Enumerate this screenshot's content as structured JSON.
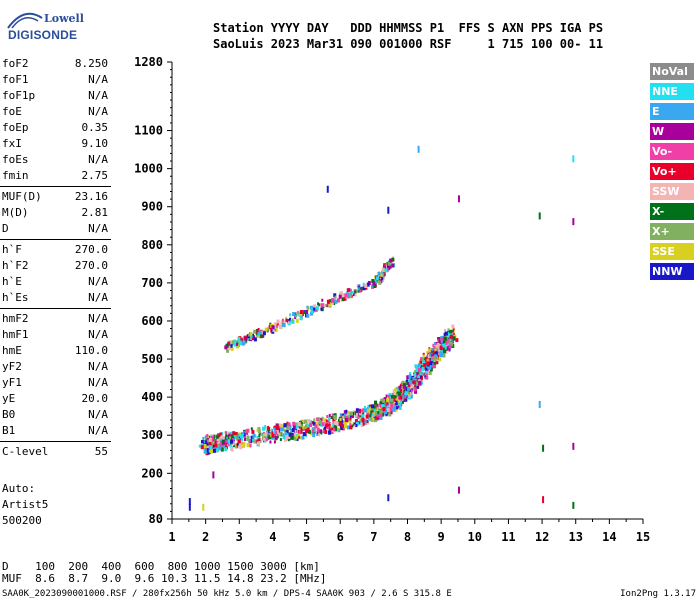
{
  "logo": {
    "line1": "Lowell",
    "line2": "DIGISONDE"
  },
  "header": {
    "line1": "Station YYYY DAY   DDD HHMMSS P1  FFS S AXN PPS IGA PS",
    "line2": "SaoLuis 2023 Mar31 090 001000 RSF     1 715 100 00- 11"
  },
  "params": [
    {
      "label": "foF2",
      "value": "8.250"
    },
    {
      "label": "foF1",
      "value": "N/A"
    },
    {
      "label": "foF1p",
      "value": "N/A"
    },
    {
      "label": "foE",
      "value": "N/A"
    },
    {
      "label": "foEp",
      "value": "0.35"
    },
    {
      "label": "fxI",
      "value": "9.10"
    },
    {
      "label": "foEs",
      "value": "N/A"
    },
    {
      "label": "fmin",
      "value": "2.75"
    },
    {
      "label": "MUF(D)",
      "value": "23.16"
    },
    {
      "label": "M(D)",
      "value": "2.81"
    },
    {
      "label": "D",
      "value": "N/A"
    },
    {
      "label": "h`F",
      "value": "270.0"
    },
    {
      "label": "h`F2",
      "value": "270.0"
    },
    {
      "label": "h`E",
      "value": "N/A"
    },
    {
      "label": "h`Es",
      "value": "N/A"
    },
    {
      "label": "hmF2",
      "value": "N/A"
    },
    {
      "label": "hmF1",
      "value": "N/A"
    },
    {
      "label": "hmE",
      "value": "110.0"
    },
    {
      "label": "yF2",
      "value": "N/A"
    },
    {
      "label": "yF1",
      "value": "N/A"
    },
    {
      "label": "yE",
      "value": "20.0"
    },
    {
      "label": "B0",
      "value": "N/A"
    },
    {
      "label": "B1",
      "value": "N/A"
    },
    {
      "label": "C-level",
      "value": "55"
    }
  ],
  "auto": {
    "line1": "Auto:",
    "line2": "Artist5",
    "line3": "500200"
  },
  "legend": [
    {
      "label": "NoVal",
      "color": "#8c8c8c"
    },
    {
      "label": "NNE",
      "color": "#22e0f0"
    },
    {
      "label": "E",
      "color": "#3aa8f0"
    },
    {
      "label": "W",
      "color": "#a8009a"
    },
    {
      "label": "Vo-",
      "color": "#f040a8"
    },
    {
      "label": "Vo+",
      "color": "#e8002a"
    },
    {
      "label": "SSW",
      "color": "#f4b4b4"
    },
    {
      "label": "X-",
      "color": "#00701a"
    },
    {
      "label": "X+",
      "color": "#80b060"
    },
    {
      "label": "SSE",
      "color": "#d8d020"
    },
    {
      "label": "NNW",
      "color": "#1818c8"
    }
  ],
  "chart_data": {
    "type": "scatter",
    "x_range": [
      1,
      15
    ],
    "y_range": [
      80,
      1280
    ],
    "x_ticks": [
      1,
      2,
      3,
      4,
      5,
      6,
      7,
      8,
      9,
      10,
      11,
      12,
      13,
      14,
      15
    ],
    "y_ticks": [
      80,
      200,
      300,
      400,
      500,
      600,
      700,
      800,
      900,
      1000,
      1100,
      1280
    ],
    "series": [
      {
        "name": "O-trace",
        "color": "#e8002a",
        "points": [
          [
            1.9,
            270
          ],
          [
            2.3,
            275
          ],
          [
            3.0,
            285
          ],
          [
            4.0,
            300
          ],
          [
            5.0,
            312
          ],
          [
            6.0,
            330
          ],
          [
            6.8,
            350
          ],
          [
            7.3,
            370
          ],
          [
            7.8,
            400
          ],
          [
            8.2,
            440
          ],
          [
            8.6,
            490
          ],
          [
            9.0,
            530
          ],
          [
            9.3,
            560
          ]
        ]
      },
      {
        "name": "X-trace",
        "color": "#a8009a",
        "points": [
          [
            2.6,
            532
          ],
          [
            3.2,
            555
          ],
          [
            4.0,
            585
          ],
          [
            5.0,
            625
          ],
          [
            6.0,
            665
          ],
          [
            7.0,
            700
          ],
          [
            7.5,
            760
          ]
        ]
      }
    ]
  },
  "dtable": {
    "row1": "D    100  200  400  600  800 1000 1500 3000 [km]",
    "row2": "MUF  8.6  8.7  9.0  9.6 10.3 11.5 14.8 23.2 [MHz]"
  },
  "footer": "SAA0K_2023090001000.RSF / 280fx256h 50 kHz 5.0 km / DPS-4 SAA0K 903 / 2.6 S 315.8 E",
  "version": "Ion2Png 1.3.17"
}
